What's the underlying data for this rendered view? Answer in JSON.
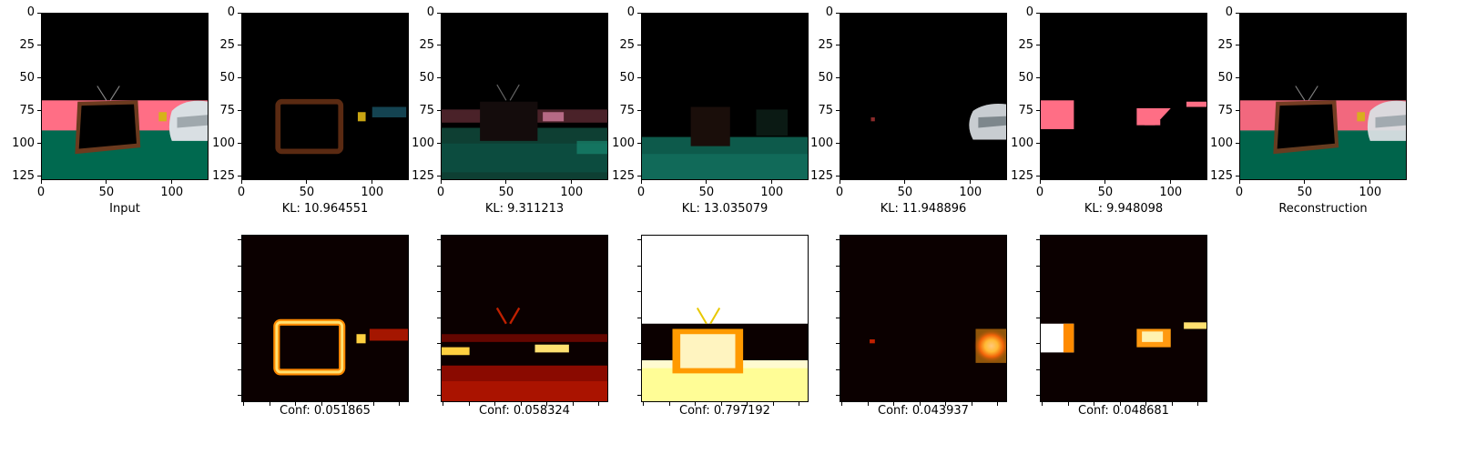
{
  "figure": {
    "top_row_ticks": [
      "0",
      "50",
      "100"
    ],
    "top_row_yticks": [
      "0",
      "25",
      "50",
      "75",
      "100",
      "125"
    ],
    "top_row": [
      {
        "caption": "Input"
      },
      {
        "caption": "KL: 10.964551"
      },
      {
        "caption": "KL: 9.311213"
      },
      {
        "caption": "KL: 13.035079"
      },
      {
        "caption": "KL: 11.948896"
      },
      {
        "caption": "KL: 9.948098"
      },
      {
        "caption": "Reconstruction"
      }
    ],
    "bottom_row": [
      {
        "caption": "Conf: 0.051865"
      },
      {
        "caption": "Conf: 0.058324"
      },
      {
        "caption": "Conf: 0.797192"
      },
      {
        "caption": "Conf: 0.043937"
      },
      {
        "caption": "Conf: 0.048681"
      }
    ]
  },
  "chart_data": {
    "type": "heatmap",
    "image_size": [
      128,
      128
    ],
    "xticks": [
      0,
      50,
      100
    ],
    "yticks": [
      0,
      25,
      50,
      75,
      100,
      125
    ],
    "kl": [
      10.964551,
      9.311213,
      13.035079,
      11.948896,
      9.948098
    ],
    "conf": [
      0.051865,
      0.058324,
      0.797192,
      0.043937,
      0.048681
    ],
    "colormap": "hot"
  }
}
